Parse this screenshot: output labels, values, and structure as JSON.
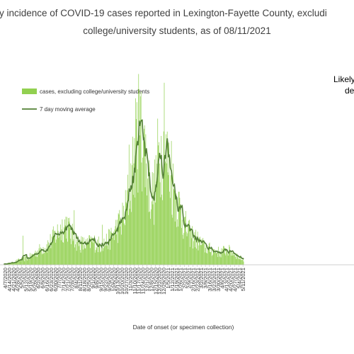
{
  "chart_data": {
    "type": "bar",
    "title_lines": [
      "ly incidence of COVID-19 cases reported in Lexington-Fayette County, excludi",
      "college/university students, as of 08/11/2021"
    ],
    "annotation_lines": [
      "Likely",
      "de"
    ],
    "xlabel": "Date of onset (or specimen collection)",
    "ylabel": "",
    "legend_placement": "top-left",
    "legend": {
      "bars": "cases, excluding college/university students",
      "line": "7 day moving average"
    },
    "colors": {
      "bars": "#92d050",
      "line": "#538135"
    },
    "grid": false,
    "start_date": "2020-04-07",
    "tick_labels": [
      "4/7/2020",
      "4/14/2020",
      "4/21/2020",
      "4/28/2020",
      "5/5/2020",
      "5/12/2020",
      "5/19/2020",
      "5/26/2020",
      "6/2/2020",
      "6/9/2020",
      "6/16/2020",
      "6/23/2020",
      "6/30/2020",
      "7/7/2020",
      "7/14/2020",
      "7/21/2020",
      "7/28/2020",
      "8/4/2020",
      "8/11/2020",
      "8/18/2020",
      "8/25/2020",
      "9/1/2020",
      "9/8/2020",
      "9/15/2020",
      "9/22/2020",
      "9/29/2020",
      "10/6/2020",
      "10/13/2020",
      "10/20/2020",
      "10/27/2020",
      "11/3/2020",
      "11/10/2020",
      "11/17/2020",
      "11/24/2020",
      "12/1/2020",
      "12/8/2020",
      "12/15/2020",
      "12/22/2020",
      "12/29/2020",
      "1/5/2021",
      "1/12/2021",
      "1/19/2021",
      "1/26/2021",
      "2/2/2021",
      "2/9/2021",
      "2/16/2021",
      "2/23/2021",
      "3/2/2021",
      "3/9/2021",
      "3/16/2021",
      "3/23/2021",
      "3/30/2021",
      "4/6/2021",
      "4/13/2021",
      "4/20/2021",
      "4/27/2021",
      "5/4/2021",
      "5/11/2021"
    ],
    "ylim": [
      0,
      280
    ],
    "weekly_avg_by_tick": [
      1,
      2,
      3,
      5,
      7,
      8,
      10,
      14,
      18,
      22,
      25,
      30,
      38,
      45,
      52,
      58,
      42,
      36,
      30,
      28,
      27,
      32,
      30,
      27,
      30,
      33,
      40,
      50,
      58,
      70,
      100,
      135,
      180,
      175,
      150,
      100,
      95,
      150,
      160,
      145,
      120,
      95,
      80,
      60,
      45,
      40,
      35,
      30,
      25,
      22,
      20,
      18,
      17,
      20,
      19,
      17,
      12,
      8
    ],
    "spikes": [
      {
        "date": "2020-05-09",
        "value": 40
      },
      {
        "date": "2020-08-03",
        "value": 75
      },
      {
        "date": "2020-09-19",
        "value": 55
      },
      {
        "date": "2020-11-03",
        "value": 165
      },
      {
        "date": "2020-11-19",
        "value": 262
      },
      {
        "date": "2020-11-23",
        "value": 238
      },
      {
        "date": "2021-01-01",
        "value": 250
      },
      {
        "date": "2021-01-13",
        "value": 170
      }
    ]
  }
}
